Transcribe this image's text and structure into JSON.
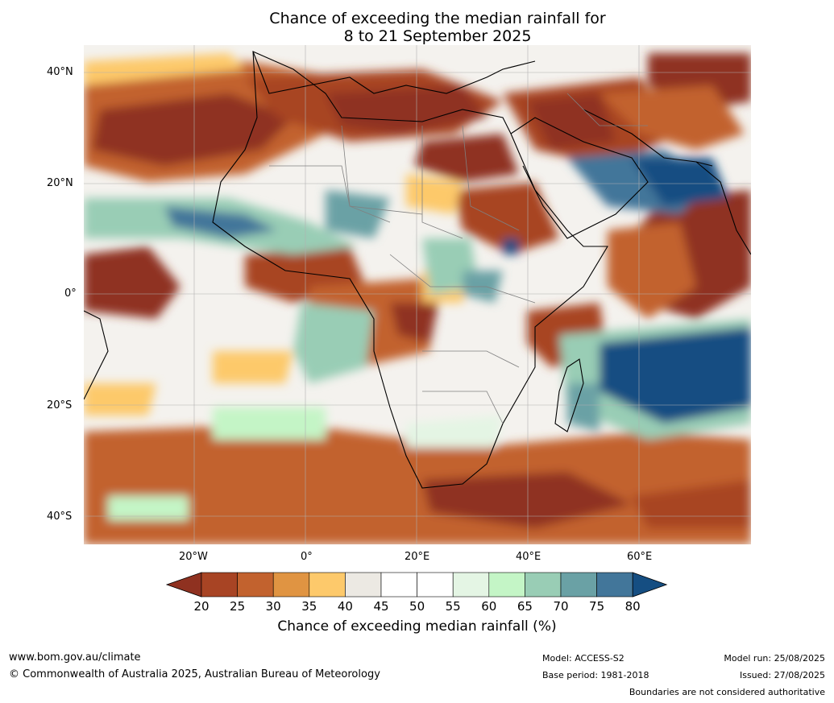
{
  "title_line1": "Chance of exceeding the median rainfall for",
  "title_line2": "8 to 21 September 2025",
  "lat_labels": [
    "40°N",
    "20°N",
    "0°",
    "20°S",
    "40°S"
  ],
  "lon_labels": [
    "20°W",
    "0°",
    "20°E",
    "40°E",
    "60°E"
  ],
  "colorbar": {
    "ticks": [
      "20",
      "25",
      "30",
      "35",
      "40",
      "45",
      "50",
      "55",
      "60",
      "65",
      "70",
      "75",
      "80"
    ],
    "label": "Chance of exceeding median rainfall (%)",
    "colors": [
      "#8f3120",
      "#a84424",
      "#c2622e",
      "#e09442",
      "#fdc96b",
      "#ece9e3",
      "#ffffff",
      "#ffffff",
      "#e4f5e4",
      "#c4f5c6",
      "#99cdb5",
      "#6aa1a5",
      "#42769a",
      "#154e82"
    ]
  },
  "footer": {
    "website": "www.bom.gov.au/climate",
    "copyright": "© Commonwealth of Australia 2025, Australian Bureau of Meteorology",
    "model": "Model: ACCESS-S2",
    "base_period": "Base period: 1981-2018",
    "model_run": "Model run: 25/08/2025",
    "issued": "Issued: 27/08/2025",
    "boundaries_note": "Boundaries are not considered authoritative"
  }
}
